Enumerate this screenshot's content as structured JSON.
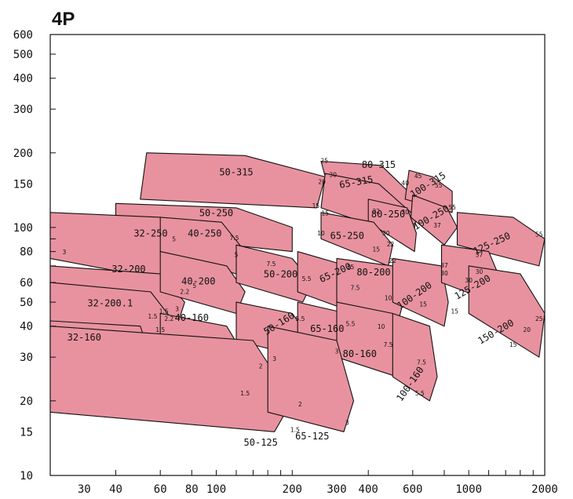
{
  "title": "4P",
  "chart_data": {
    "type": "area",
    "title": "4P",
    "xlabel": "",
    "ylabel": "",
    "x_scale": "log",
    "y_scale": "log",
    "xlim": [
      22,
      2000
    ],
    "ylim": [
      10,
      600
    ],
    "x_ticks": [
      30,
      40,
      60,
      80,
      100,
      200,
      300,
      400,
      600,
      1000,
      2000
    ],
    "y_ticks": [
      10,
      15,
      20,
      30,
      40,
      50,
      60,
      80,
      100,
      150,
      200,
      300,
      400,
      500,
      600
    ],
    "fill_color": "#e8929f",
    "stroke_color": "#111111",
    "zones": [
      {
        "label": "50-315",
        "x": [
          53,
          130,
          270,
          250,
          50
        ],
        "y": [
          200,
          195,
          160,
          120,
          130
        ],
        "label_at": [
          120,
          162
        ],
        "label_rot": 0,
        "power_labels": [
          {
            "text": "25",
            "at": [
              268,
              182
            ]
          },
          {
            "text": "20",
            "at": [
              262,
              150
            ]
          },
          {
            "text": "15",
            "at": [
              248,
              120
            ]
          }
        ]
      },
      {
        "label": "80-315",
        "x": [
          260,
          450,
          620,
          600,
          275
        ],
        "y": [
          185,
          178,
          130,
          108,
          150
        ],
        "label_at": [
          440,
          174
        ],
        "label_rot": 0,
        "power_labels": [
          {
            "text": "45",
            "at": [
              630,
              158
            ]
          },
          {
            "text": "40",
            "at": [
              560,
              148
            ]
          },
          {
            "text": "30",
            "at": [
              560,
              113
            ]
          }
        ]
      },
      {
        "label": "100-315",
        "x": [
          580,
          720,
          860,
          860,
          560
        ],
        "y": [
          170,
          160,
          140,
          115,
          130
        ],
        "label_at": [
          700,
          145
        ],
        "label_rot": -32,
        "power_labels": [
          {
            "text": "55",
            "at": [
              760,
              145
            ]
          }
        ]
      },
      {
        "label": "65-315",
        "x": [
          270,
          440,
          620,
          600,
          260
        ],
        "y": [
          165,
          150,
          110,
          90,
          120
        ],
        "label_at": [
          360,
          148
        ],
        "label_rot": -10,
        "power_labels": [
          {
            "text": "30",
            "at": [
              290,
              160
            ]
          },
          {
            "text": "22",
            "at": [
              430,
              114
            ]
          }
        ]
      },
      {
        "label": "50-250",
        "x": [
          40,
          120,
          200,
          200,
          40
        ],
        "y": [
          125,
          120,
          100,
          80,
          95
        ],
        "label_at": [
          100,
          111
        ],
        "label_rot": 0,
        "power_labels": [
          {
            "text": "15",
            "at": [
              270,
              112
            ]
          },
          {
            "text": "10",
            "at": [
              260,
              93
            ]
          }
        ]
      },
      {
        "label": "100-250",
        "x": [
          600,
          820,
          900,
          800,
          590
        ],
        "y": [
          135,
          120,
          100,
          85,
          110
        ],
        "label_at": [
          720,
          107
        ],
        "label_rot": -30,
        "power_labels": [
          {
            "text": "55",
            "at": [
              860,
              118
            ]
          },
          {
            "text": "37",
            "at": [
              750,
              100
            ]
          }
        ]
      },
      {
        "label": "125-250",
        "x": [
          900,
          1500,
          2000,
          1900,
          900
        ],
        "y": [
          115,
          110,
          90,
          70,
          85
        ],
        "label_at": [
          1250,
          84
        ],
        "label_rot": -25,
        "power_labels": [
          {
            "text": "55",
            "at": [
              1900,
              92
            ]
          },
          {
            "text": "37",
            "at": [
              1100,
              76
            ]
          },
          {
            "text": "30",
            "at": [
              1000,
              60
            ]
          }
        ]
      },
      {
        "label": "80-250",
        "x": [
          400,
          570,
          620,
          610,
          400
        ],
        "y": [
          130,
          120,
          95,
          80,
          105
        ],
        "label_at": [
          480,
          110
        ],
        "label_rot": 0,
        "power_labels": [
          {
            "text": "30",
            "at": [
              470,
              93
            ]
          },
          {
            "text": "22",
            "at": [
              490,
              84
            ]
          }
        ]
      },
      {
        "label": "65-250",
        "x": [
          260,
          420,
          500,
          480,
          260
        ],
        "y": [
          115,
          105,
          85,
          70,
          90
        ],
        "label_at": [
          330,
          90
        ],
        "label_rot": 0,
        "power_labels": [
          {
            "text": "15",
            "at": [
              430,
              80
            ]
          }
        ]
      },
      {
        "label": "32-250",
        "x": [
          22,
          60,
          75,
          70,
          22
        ],
        "y": [
          115,
          110,
          80,
          60,
          75
        ],
        "label_at": [
          55,
          92
        ],
        "label_rot": 0,
        "power_labels": [
          {
            "text": "5",
            "at": [
              68,
              88
            ]
          },
          {
            "text": "3",
            "at": [
              25,
              78
            ]
          }
        ]
      },
      {
        "label": "40-250",
        "x": [
          60,
          105,
          130,
          120,
          60
        ],
        "y": [
          110,
          105,
          80,
          65,
          80
        ],
        "label_at": [
          90,
          92
        ],
        "label_rot": 0,
        "power_labels": [
          {
            "text": "7.5",
            "at": [
              118,
              89
            ]
          },
          {
            "text": "5",
            "at": [
              120,
              76
            ]
          }
        ]
      },
      {
        "label": "32-200",
        "x": [
          22,
          60,
          75,
          70,
          22
        ],
        "y": [
          70,
          65,
          50,
          40,
          50
        ],
        "label_at": [
          45,
          66
        ],
        "label_rot": 0,
        "power_labels": [
          {
            "text": "2.2",
            "at": [
              75,
              54
            ]
          },
          {
            "text": "1.5",
            "at": [
              62,
              45
            ]
          }
        ]
      },
      {
        "label": "32-200.1",
        "x": [
          22,
          55,
          70,
          60,
          22
        ],
        "y": [
          60,
          55,
          40,
          32,
          40
        ],
        "label_at": [
          38,
          48
        ],
        "label_rot": 0,
        "power_labels": [
          {
            "text": "1.5",
            "at": [
              56,
              43
            ]
          }
        ]
      },
      {
        "label": "40-200",
        "x": [
          60,
          110,
          130,
          120,
          60
        ],
        "y": [
          80,
          70,
          55,
          45,
          55
        ],
        "label_at": [
          85,
          59
        ],
        "label_rot": 0,
        "power_labels": [
          {
            "text": "5",
            "at": [
              82,
              57
            ]
          },
          {
            "text": "3",
            "at": [
              70,
              46
            ]
          }
        ]
      },
      {
        "label": "50-200",
        "x": [
          120,
          200,
          240,
          220,
          120
        ],
        "y": [
          85,
          75,
          60,
          50,
          60
        ],
        "label_at": [
          180,
          63
        ],
        "label_rot": 0,
        "power_labels": [
          {
            "text": "7.5",
            "at": [
              165,
              70
            ]
          },
          {
            "text": "5.5",
            "at": [
              228,
              61
            ]
          }
        ]
      },
      {
        "label": "65-200",
        "x": [
          210,
          330,
          380,
          360,
          210
        ],
        "y": [
          80,
          70,
          55,
          45,
          55
        ],
        "label_at": [
          300,
          64
        ],
        "label_rot": -25,
        "power_labels": [
          {
            "text": "15",
            "at": [
              340,
              68
            ]
          },
          {
            "text": "7.5",
            "at": [
              355,
              56
            ]
          }
        ]
      },
      {
        "label": "80-200",
        "x": [
          300,
          500,
          550,
          520,
          300
        ],
        "y": [
          75,
          70,
          50,
          40,
          50
        ],
        "label_at": [
          420,
          64
        ],
        "label_rot": 0,
        "power_labels": [
          {
            "text": "22",
            "at": [
              500,
              72
            ]
          },
          {
            "text": "10",
            "at": [
              480,
              51
            ]
          }
        ]
      },
      {
        "label": "100-200",
        "x": [
          500,
          780,
          830,
          800,
          500
        ],
        "y": [
          75,
          70,
          50,
          40,
          50
        ],
        "label_at": [
          620,
          52
        ],
        "label_rot": -35,
        "power_labels": [
          {
            "text": "37",
            "at": [
              800,
              69
            ]
          },
          {
            "text": "30",
            "at": [
              800,
              64
            ]
          },
          {
            "text": "15",
            "at": [
              660,
              48
            ]
          }
        ]
      },
      {
        "label": "125-200",
        "x": [
          780,
          1200,
          1350,
          1250,
          780
        ],
        "y": [
          85,
          80,
          60,
          50,
          60
        ],
        "label_at": [
          1050,
          56
        ],
        "label_rot": -30,
        "power_labels": [
          {
            "text": "30",
            "at": [
              1100,
              65
            ]
          },
          {
            "text": "15",
            "at": [
              880,
              45
            ]
          }
        ]
      },
      {
        "label": "150-200",
        "x": [
          1000,
          1600,
          2000,
          1900,
          1000
        ],
        "y": [
          70,
          65,
          45,
          30,
          45
        ],
        "label_at": [
          1300,
          37
        ],
        "label_rot": -30,
        "power_labels": [
          {
            "text": "25",
            "at": [
              1900,
              42
            ]
          },
          {
            "text": "20",
            "at": [
              1700,
              38
            ]
          },
          {
            "text": "15",
            "at": [
              1500,
              33
            ]
          }
        ]
      },
      {
        "label": "32-160",
        "x": [
          22,
          50,
          55,
          50,
          22
        ],
        "y": [
          42,
          40,
          30,
          28,
          30
        ],
        "label_at": [
          30,
          35
        ],
        "label_rot": 0,
        "power_labels": []
      },
      {
        "label": "40-160",
        "x": [
          60,
          110,
          130,
          120,
          60
        ],
        "y": [
          45,
          40,
          30,
          25,
          30
        ],
        "label_at": [
          80,
          42
        ],
        "label_rot": 0,
        "power_labels": [
          {
            "text": "2.2",
            "at": [
              65,
              42
            ]
          },
          {
            "text": "1.5",
            "at": [
              60,
              38
            ]
          }
        ]
      },
      {
        "label": "50-160",
        "x": [
          120,
          200,
          240,
          220,
          120
        ],
        "y": [
          50,
          45,
          35,
          30,
          35
        ],
        "label_at": [
          180,
          40
        ],
        "label_rot": -32,
        "power_labels": [
          {
            "text": "5.5",
            "at": [
              215,
              42
            ]
          },
          {
            "text": "3",
            "at": [
              170,
              29
            ]
          },
          {
            "text": "2",
            "at": [
              150,
              27
            ]
          }
        ]
      },
      {
        "label": "65-160",
        "x": [
          210,
          330,
          380,
          360,
          210
        ],
        "y": [
          50,
          45,
          35,
          30,
          35
        ],
        "label_at": [
          275,
          38
        ],
        "label_rot": 0,
        "power_labels": [
          {
            "text": "5.5",
            "at": [
              340,
              40
            ]
          },
          {
            "text": "3",
            "at": [
              300,
              31
            ]
          }
        ]
      },
      {
        "label": "80-160",
        "x": [
          300,
          500,
          550,
          520,
          300
        ],
        "y": [
          50,
          45,
          30,
          25,
          30
        ],
        "label_at": [
          370,
          30
        ],
        "label_rot": 0,
        "power_labels": [
          {
            "text": "10",
            "at": [
              450,
              39
            ]
          },
          {
            "text": "7.5",
            "at": [
              480,
              33
            ]
          }
        ]
      },
      {
        "label": "100-160",
        "x": [
          500,
          700,
          750,
          700,
          500
        ],
        "y": [
          45,
          40,
          25,
          20,
          25
        ],
        "label_at": [
          600,
          23
        ],
        "label_rot": -55,
        "power_labels": [
          {
            "text": "7.5",
            "at": [
              650,
              28
            ]
          },
          {
            "text": "5.5",
            "at": [
              640,
              21
            ]
          }
        ]
      },
      {
        "label": "50-125",
        "x": [
          22,
          140,
          200,
          170,
          22
        ],
        "y": [
          40,
          35,
          20,
          15,
          18
        ],
        "label_at": [
          150,
          13.2
        ],
        "label_rot": 0,
        "power_labels": [
          {
            "text": "1.5",
            "at": [
              130,
              21
            ]
          }
        ]
      },
      {
        "label": "65-125",
        "x": [
          160,
          300,
          350,
          320,
          160
        ],
        "y": [
          40,
          35,
          20,
          15,
          18
        ],
        "label_at": [
          240,
          14
        ],
        "label_rot": 0,
        "power_labels": [
          {
            "text": "2",
            "at": [
              215,
              19
            ]
          },
          {
            "text": "1.5",
            "at": [
              205,
              15
            ]
          },
          {
            "text": "3",
            "at": [
              330,
              16
            ]
          }
        ]
      }
    ]
  }
}
